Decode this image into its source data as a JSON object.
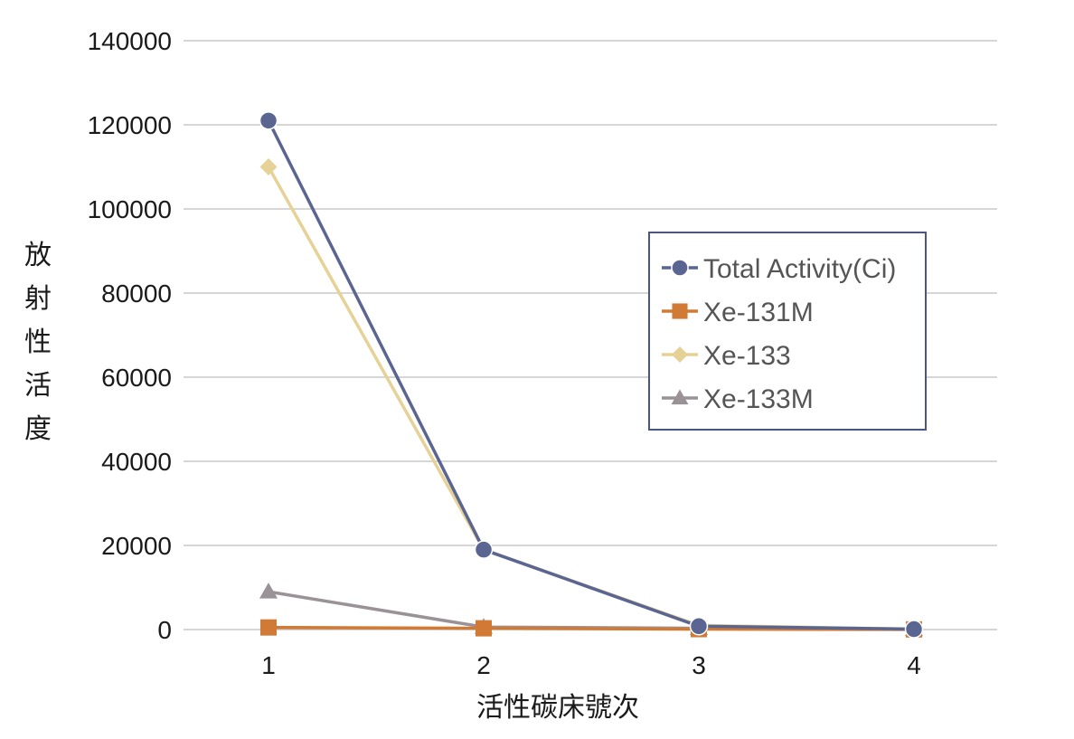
{
  "chart_data": {
    "type": "line",
    "title": "",
    "xlabel": "活性碳床號次",
    "ylabel": "放射性活度",
    "x": [
      1,
      2,
      3,
      4
    ],
    "xtick_labels": [
      "1",
      "2",
      "3",
      "4"
    ],
    "ylim": [
      0,
      140000
    ],
    "ytick_labels": [
      "0",
      "20000",
      "40000",
      "60000",
      "80000",
      "100000",
      "120000",
      "140000"
    ],
    "grid": true,
    "legend_position": "right",
    "series": [
      {
        "name": "Total Activity(Ci)",
        "values": [
          121000,
          19000,
          800,
          100
        ],
        "color": "#5a6591",
        "marker": "circle"
      },
      {
        "name": "Xe-131M",
        "values": [
          500,
          300,
          100,
          30
        ],
        "color": "#d07a35",
        "marker": "square"
      },
      {
        "name": "Xe-133",
        "values": [
          110000,
          19000,
          1000,
          100
        ],
        "color": "#e6d296",
        "marker": "diamond"
      },
      {
        "name": "Xe-133M",
        "values": [
          9000,
          600,
          300,
          50
        ],
        "color": "#9a9296",
        "marker": "triangle"
      }
    ]
  }
}
